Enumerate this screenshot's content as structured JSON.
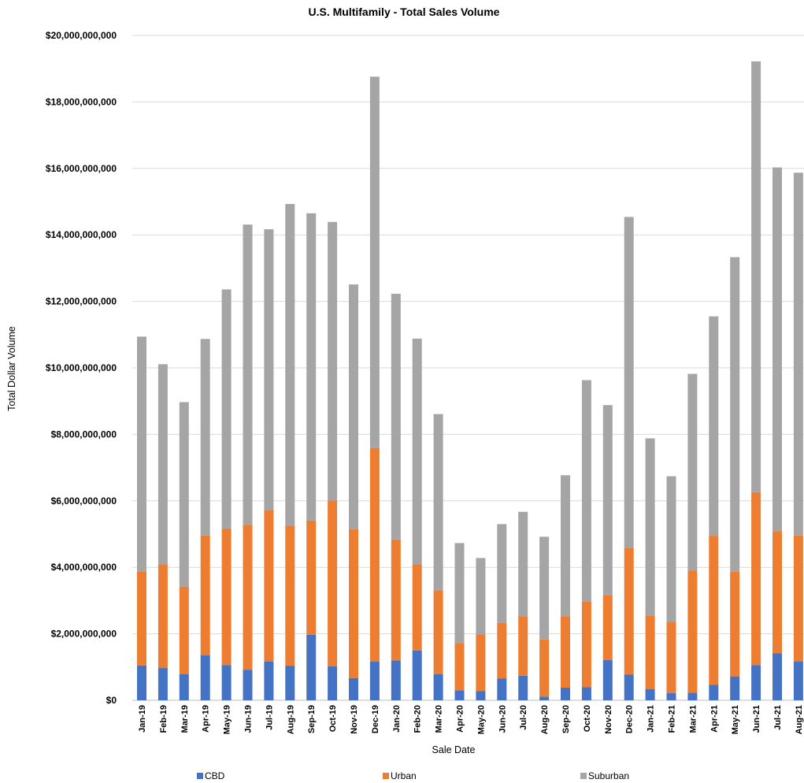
{
  "chart_data": {
    "type": "bar",
    "stacked": true,
    "title": "U.S. Multifamily - Total Sales Volume",
    "xlabel": "Sale Date",
    "ylabel": "Total Dollar Volume",
    "ylim": [
      0,
      20000000000
    ],
    "yticks": [
      0,
      2000000000,
      4000000000,
      6000000000,
      8000000000,
      10000000000,
      12000000000,
      14000000000,
      16000000000,
      18000000000,
      20000000000
    ],
    "ytick_labels": [
      "$0",
      "$2,000,000,000",
      "$4,000,000,000",
      "$6,000,000,000",
      "$8,000,000,000",
      "$10,000,000,000",
      "$12,000,000,000",
      "$14,000,000,000",
      "$16,000,000,000",
      "$18,000,000,000",
      "$20,000,000,000"
    ],
    "grid": true,
    "legend_position": "bottom",
    "categories": [
      "Jan-19",
      "Feb-19",
      "Mar-19",
      "Apr-19",
      "May-19",
      "Jun-19",
      "Jul-19",
      "Aug-19",
      "Sep-19",
      "Oct-19",
      "Nov-19",
      "Dec-19",
      "Jan-20",
      "Feb-20",
      "Mar-20",
      "Apr-20",
      "May-20",
      "Jun-20",
      "Jul-20",
      "Aug-20",
      "Sep-20",
      "Oct-20",
      "Nov-20",
      "Dec-20",
      "Jan-21",
      "Feb-21",
      "Mar-21",
      "Apr-21",
      "May-21",
      "Jun-21",
      "Jul-21",
      "Aug-21"
    ],
    "series": [
      {
        "name": "CBD",
        "color": "#4472C4",
        "values": [
          1050000000,
          970000000,
          790000000,
          1350000000,
          1060000000,
          920000000,
          1170000000,
          1040000000,
          1970000000,
          1020000000,
          670000000,
          1170000000,
          1200000000,
          1500000000,
          790000000,
          300000000,
          280000000,
          660000000,
          740000000,
          110000000,
          380000000,
          390000000,
          1210000000,
          770000000,
          340000000,
          220000000,
          230000000,
          470000000,
          720000000,
          1060000000,
          1410000000,
          1170000000
        ]
      },
      {
        "name": "Urban",
        "color": "#ED7D31",
        "values": [
          2830000000,
          3120000000,
          2630000000,
          3610000000,
          4110000000,
          4360000000,
          4560000000,
          4210000000,
          3440000000,
          4990000000,
          4480000000,
          6420000000,
          3640000000,
          2590000000,
          2520000000,
          1420000000,
          1700000000,
          1670000000,
          1790000000,
          1720000000,
          2150000000,
          2580000000,
          1960000000,
          3820000000,
          2210000000,
          2140000000,
          3670000000,
          4480000000,
          3150000000,
          5200000000,
          3680000000,
          3790000000
        ]
      },
      {
        "name": "Suburban",
        "color": "#A5A5A5",
        "values": [
          7060000000,
          6020000000,
          5550000000,
          5910000000,
          7190000000,
          9030000000,
          8440000000,
          9680000000,
          9240000000,
          8380000000,
          7360000000,
          11170000000,
          7390000000,
          6790000000,
          5300000000,
          3010000000,
          2300000000,
          2970000000,
          3140000000,
          3090000000,
          4240000000,
          6660000000,
          5710000000,
          9950000000,
          5330000000,
          4380000000,
          5920000000,
          6600000000,
          9460000000,
          12960000000,
          10940000000,
          10910000000
        ]
      }
    ]
  }
}
